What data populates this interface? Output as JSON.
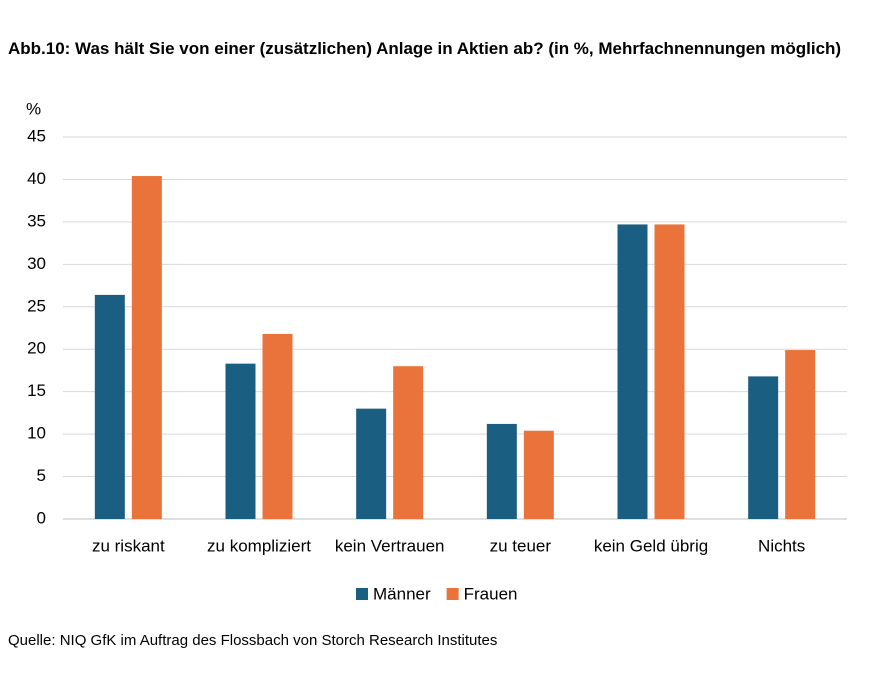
{
  "chart_data": {
    "type": "bar",
    "title": "Abb.10: Was hält Sie von einer (zusätzlichen) Anlage in Aktien ab? (in %, Mehrfachnennungen möglich)",
    "y_label": "%",
    "categories": [
      "zu riskant",
      "zu kompliziert",
      "kein Vertrauen",
      "zu teuer",
      "kein Geld übrig",
      "Nichts"
    ],
    "series": [
      {
        "name": "Männer",
        "color": "#1a5e82",
        "values": [
          26.4,
          18.3,
          13.0,
          11.2,
          34.7,
          16.8
        ]
      },
      {
        "name": "Frauen",
        "color": "#e9733a",
        "values": [
          40.4,
          21.8,
          18.0,
          10.4,
          34.7,
          19.9
        ]
      }
    ],
    "ylim": [
      0,
      45
    ],
    "yticks": [
      0,
      5,
      10,
      15,
      20,
      25,
      30,
      35,
      40,
      45
    ],
    "grid": true,
    "legend": "bottom",
    "source": "Quelle: NIQ GfK im Auftrag des Flossbach von Storch Research Institutes"
  }
}
